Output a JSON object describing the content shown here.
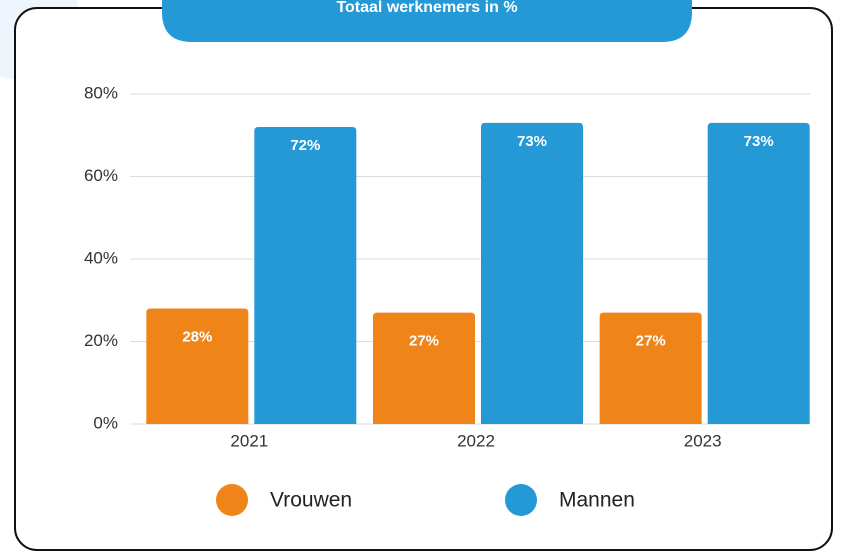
{
  "chart_data": {
    "type": "bar",
    "title": "Totaal werknemers in %",
    "categories": [
      "2021",
      "2022",
      "2023"
    ],
    "series": [
      {
        "name": "Vrouwen",
        "color": "#ef8418",
        "values": [
          28,
          27,
          27
        ],
        "value_labels": [
          "28%",
          "27%",
          "27%"
        ]
      },
      {
        "name": "Mannen",
        "color": "#2499d6",
        "values": [
          72,
          73,
          73
        ],
        "value_labels": [
          "72%",
          "73%",
          "73%"
        ]
      }
    ],
    "ylim": [
      0,
      80
    ],
    "yticks": [
      {
        "value": 0,
        "label": "0%"
      },
      {
        "value": 20,
        "label": "20%"
      },
      {
        "value": 40,
        "label": "40%"
      },
      {
        "value": 60,
        "label": "60%"
      },
      {
        "value": 80,
        "label": "80%"
      }
    ],
    "grid": true
  }
}
